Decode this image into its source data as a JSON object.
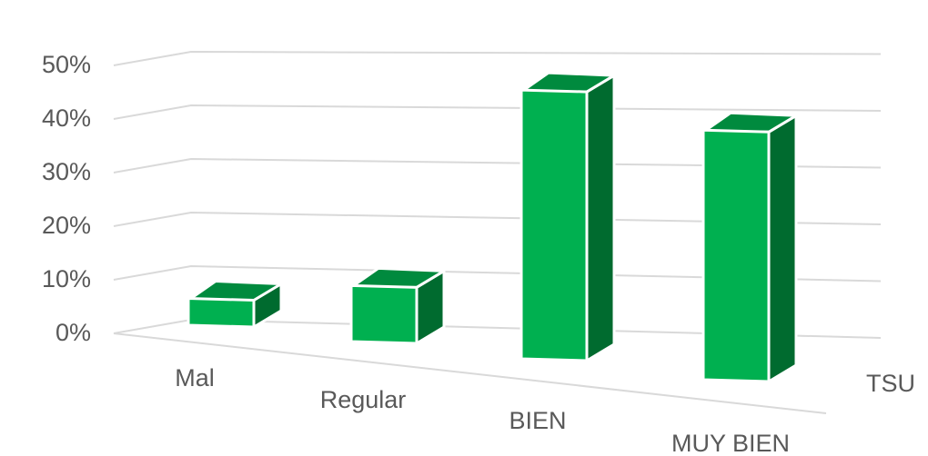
{
  "chart_data": {
    "type": "bar",
    "title": "",
    "xlabel": "",
    "ylabel": "",
    "categories": [
      "Mal",
      "Regular",
      "BIEN",
      "MUY BIEN"
    ],
    "series": [
      {
        "name": "TSU",
        "values": [
          5,
          10,
          46,
          41
        ]
      }
    ],
    "ylim": [
      0,
      50
    ],
    "yticks": [
      "0%",
      "10%",
      "20%",
      "30%",
      "40%",
      "50%"
    ],
    "grid": true,
    "legend": "none",
    "colors": {
      "front": "#00b050",
      "top": "#008a3e",
      "side": "#006b2f",
      "grid": "#d9d9d9",
      "text": "#595959"
    }
  }
}
